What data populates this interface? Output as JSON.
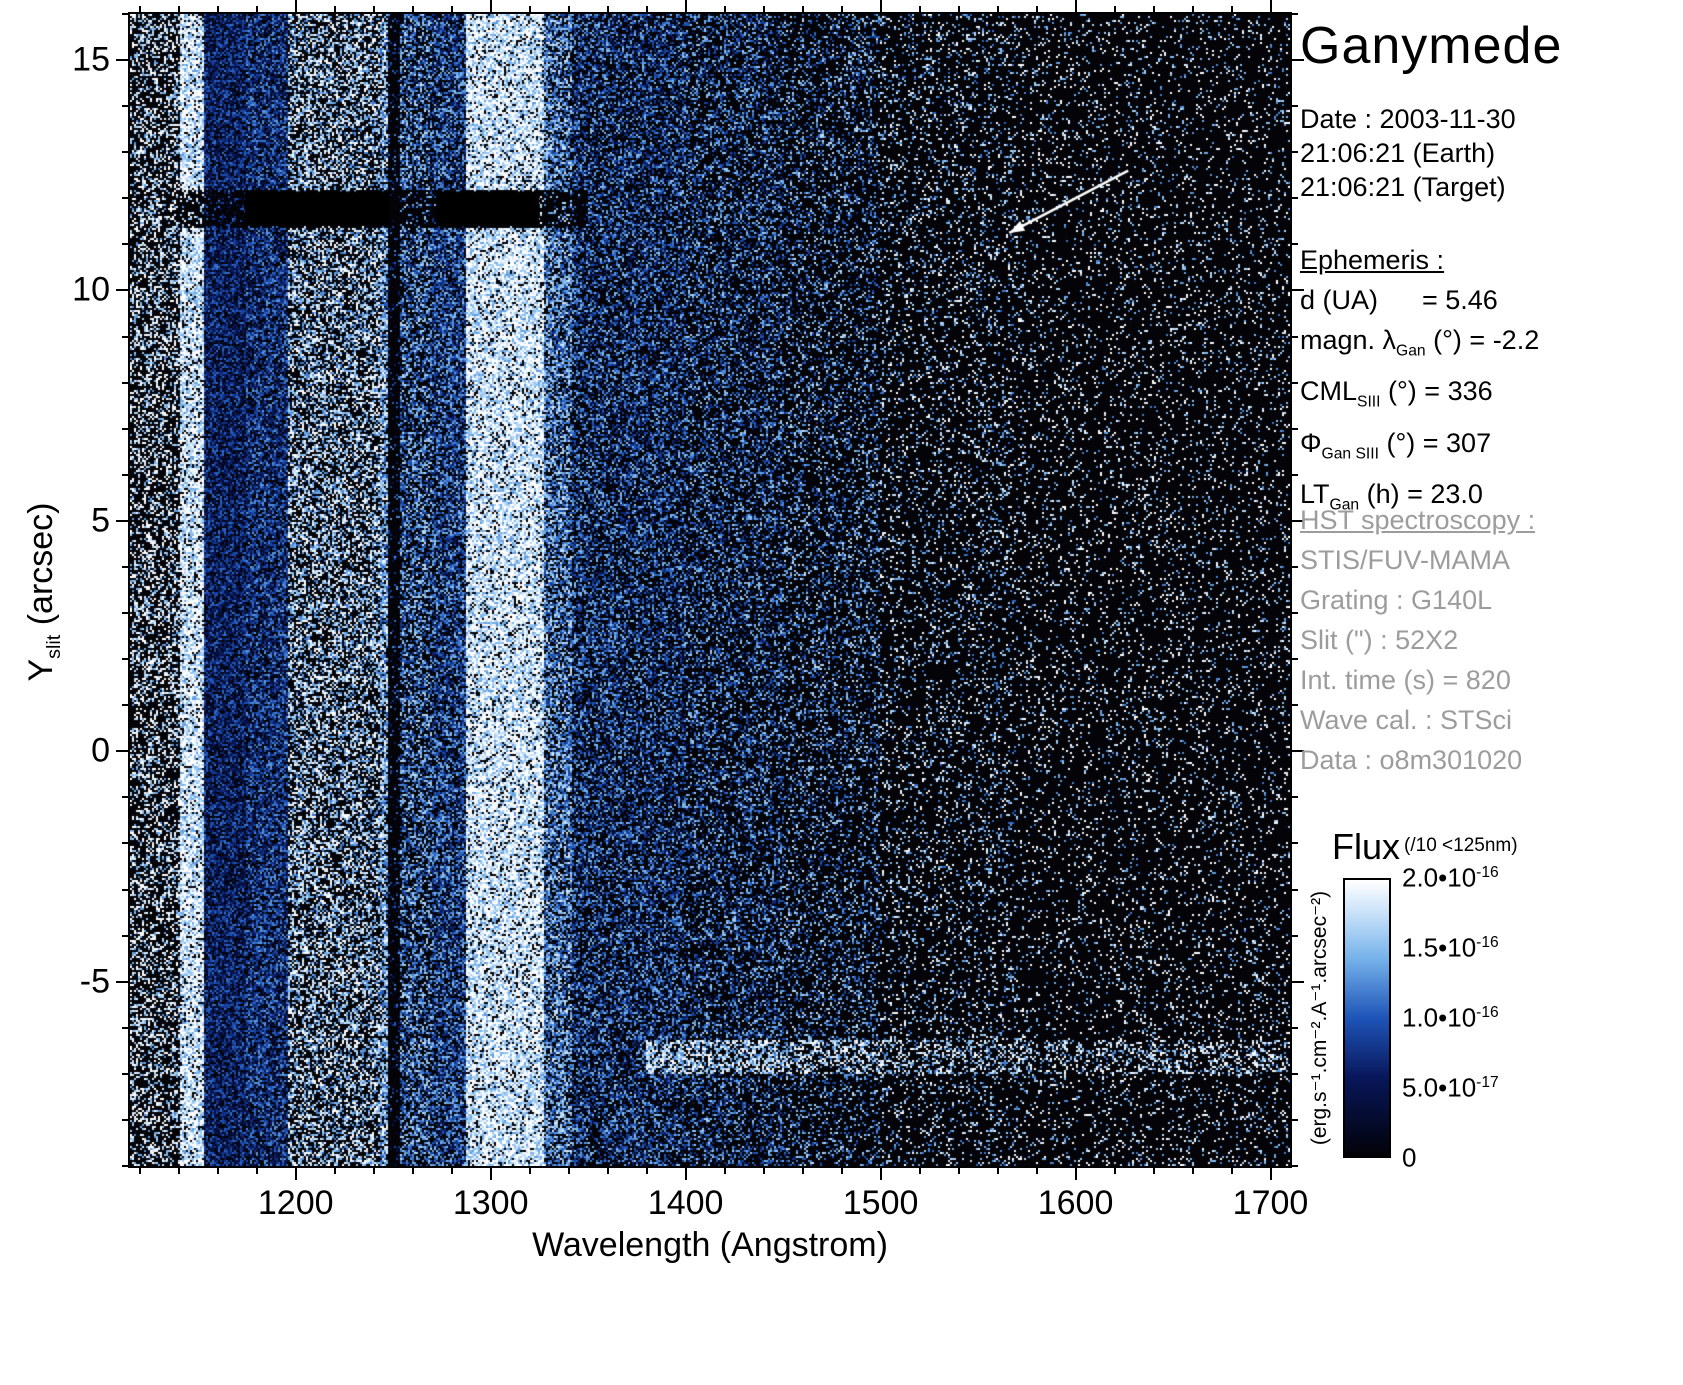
{
  "title": "Ganymede",
  "info": {
    "date_lines": [
      "Date : 2003-11-30",
      "21:06:21 (Earth)",
      "21:06:21 (Target)"
    ],
    "ephemeris": {
      "heading": "Ephemeris :",
      "d_label": "d (UA)",
      "d_value": "= 5.46",
      "magn_pre": "magn. λ",
      "magn_sub": "Gan",
      "magn_post": " (°) = -2.2",
      "cml_pre": "CML",
      "cml_sub": "SIII",
      "cml_post": " (°) = 336",
      "phi_pre": "Φ",
      "phi_sub": "Gan SIII",
      "phi_post": " (°) = 307",
      "lt_pre": "LT",
      "lt_sub": "Gan",
      "lt_post": " (h) = 23.0"
    },
    "hst": {
      "heading": "HST spectroscopy :",
      "lines": [
        "STIS/FUV-MAMA",
        "Grating : G140L",
        "Slit (\") : 52X2",
        "Int. time (s) = 820",
        "Wave cal. : STSci",
        "Data : o8m301020"
      ]
    }
  },
  "chart_data": {
    "type": "heatmap",
    "description": "HST/STIS FUV-MAMA 2D spectral image of Ganymede: wavelength (Angstrom) vs slit position Y (arcsec), flux rendered with a black-blue-white colormap. Bright vertical bands are airglow emission near H Lyman-alpha (~1216 A) and OI (~1304 A); two solid black horizontal occulting-bar shadows near Y = 11.4-12.15 arcsec; a white arrow points to a feature near 1570 A, Y = 11 arcsec.",
    "xlabel": "Wavelength (Angstrom)",
    "ylabel_main": "Y",
    "ylabel_sub": "slit",
    "ylabel_rest": " (arcsec)",
    "xlim": [
      1115,
      1710
    ],
    "ylim": [
      -9,
      16
    ],
    "x_ticks": [
      1200,
      1300,
      1400,
      1500,
      1600,
      1700
    ],
    "x_minor": 20,
    "y_ticks": [
      15,
      10,
      5,
      0,
      -5
    ],
    "y_minor": 1,
    "bands": [
      {
        "x0": 1115,
        "x1": 1141,
        "d": 0.35,
        "t": 0.9
      },
      {
        "x0": 1141,
        "x1": 1153,
        "d": 0.85,
        "t": 0.92
      },
      {
        "x0": 1153,
        "x1": 1174,
        "d": 0.85,
        "t": 0.3
      },
      {
        "x0": 1174,
        "x1": 1196,
        "d": 0.75,
        "t": 0.4
      },
      {
        "x0": 1196,
        "x1": 1243,
        "d": 0.48,
        "t": 0.82
      },
      {
        "x0": 1243,
        "x1": 1247,
        "d": 0.7,
        "t": 0.75
      },
      {
        "x0": 1247,
        "x1": 1254,
        "d": 0.12,
        "t": 0.4
      },
      {
        "x0": 1254,
        "x1": 1270,
        "d": 0.55,
        "t": 0.6
      },
      {
        "x0": 1270,
        "x1": 1287,
        "d": 0.65,
        "t": 0.5
      },
      {
        "x0": 1287,
        "x1": 1327,
        "d": 0.85,
        "t": 0.92
      },
      {
        "x0": 1327,
        "x1": 1342,
        "d": 0.65,
        "t": 0.65
      },
      {
        "x0": 1342,
        "x1": 1400,
        "d": 0.5,
        "t": 0.5
      },
      {
        "x0": 1400,
        "x1": 1450,
        "d": 0.38,
        "t": 0.55
      },
      {
        "x0": 1450,
        "x1": 1500,
        "d": 0.26,
        "t": 0.62
      },
      {
        "x0": 1500,
        "x1": 1570,
        "d": 0.16,
        "t": 0.78
      },
      {
        "x0": 1570,
        "x1": 1710,
        "d": 0.11,
        "t": 0.85
      }
    ],
    "bar_row": {
      "x0": 1140,
      "x1": 1350,
      "y0": 11.35,
      "y1": 12.2
    },
    "occulting_bars": [
      {
        "x0": 1174,
        "x1": 1248,
        "y0": 11.4,
        "y1": 12.15
      },
      {
        "x0": 1272,
        "x1": 1325,
        "y0": 11.4,
        "y1": 12.15
      }
    ],
    "bright_band": {
      "x0": 1380,
      "y0": -7.0,
      "y1": -6.25,
      "boost": 0.22
    },
    "arrow": {
      "x0": 1627,
      "y0": 12.6,
      "x1": 1566,
      "y1": 11.25
    },
    "colormap": [
      [
        0,
        [
          2,
          2,
          8
        ]
      ],
      [
        0.28,
        [
          8,
          22,
          90
        ]
      ],
      [
        0.5,
        [
          30,
          85,
          185
        ]
      ],
      [
        0.72,
        [
          120,
          180,
          235
        ]
      ],
      [
        0.88,
        [
          200,
          225,
          248
        ]
      ],
      [
        1,
        [
          255,
          255,
          255
        ]
      ]
    ],
    "colorbar": {
      "label": "Flux",
      "note": "(/10 <125nm)",
      "units": "(erg.s⁻¹.cm⁻².A⁻¹.arcsec⁻²)",
      "ticks": [
        {
          "m": "2.0•10",
          "e": "-16"
        },
        {
          "m": "1.5•10",
          "e": "-16"
        },
        {
          "m": "1.0•10",
          "e": "-16"
        },
        {
          "m": "5.0•10",
          "e": "-17"
        },
        {
          "m": "0",
          "e": ""
        }
      ]
    }
  }
}
